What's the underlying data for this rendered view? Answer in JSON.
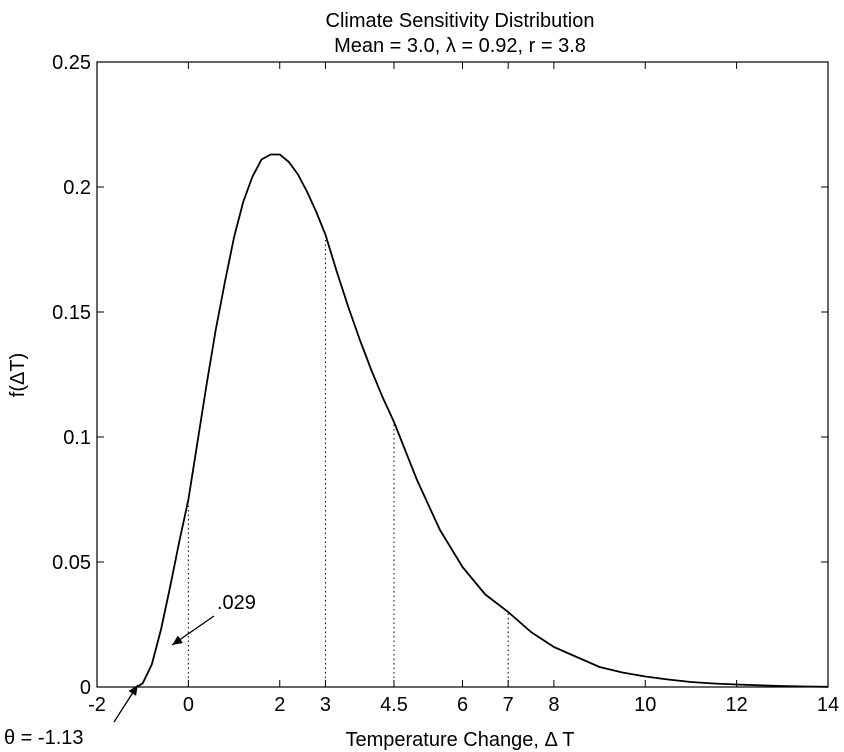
{
  "chart_data": {
    "type": "line",
    "title": "Climate Sensitivity Distribution",
    "subtitle": "Mean = 3.0, λ = 0.92, r = 3.8",
    "xlabel": "Temperature Change, Δ T",
    "ylabel": "f(ΔT)",
    "xlim": [
      -2,
      14
    ],
    "ylim": [
      0,
      0.25
    ],
    "x_ticks": [
      -2,
      0,
      2,
      3,
      4.5,
      6,
      7,
      8,
      10,
      12,
      14
    ],
    "x_tick_labels": [
      "-2",
      "0",
      "2",
      "3",
      "4.5",
      "6",
      "7",
      "8",
      "10",
      "12",
      "14"
    ],
    "y_ticks": [
      0,
      0.05,
      0.1,
      0.15,
      0.2,
      0.25
    ],
    "y_tick_labels": [
      "0",
      "0.05",
      "0.1",
      "0.15",
      "0.2",
      "0.25"
    ],
    "grid": false,
    "series": [
      {
        "x": [
          -1.13,
          -1.0,
          -0.8,
          -0.6,
          -0.4,
          -0.2,
          0.0,
          0.2,
          0.4,
          0.6,
          0.8,
          1.0,
          1.2,
          1.4,
          1.6,
          1.8,
          2.0,
          2.2,
          2.4,
          2.6,
          2.8,
          3.0,
          3.25,
          3.5,
          3.75,
          4.0,
          4.25,
          4.5,
          5.0,
          5.5,
          6.0,
          6.5,
          7.0,
          7.5,
          8.0,
          8.5,
          9.0,
          9.5,
          10.0,
          10.5,
          11.0,
          11.5,
          12.0,
          12.5,
          13.0,
          13.5,
          14.0
        ],
        "y": [
          0.0,
          0.0015,
          0.009,
          0.023,
          0.04,
          0.058,
          0.075,
          0.098,
          0.121,
          0.143,
          0.162,
          0.18,
          0.194,
          0.204,
          0.211,
          0.213,
          0.213,
          0.21,
          0.205,
          0.198,
          0.19,
          0.181,
          0.166,
          0.152,
          0.139,
          0.127,
          0.116,
          0.106,
          0.083,
          0.063,
          0.048,
          0.037,
          0.03,
          0.022,
          0.016,
          0.012,
          0.008,
          0.0058,
          0.0042,
          0.003,
          0.002,
          0.0014,
          0.001,
          0.0007,
          0.0004,
          0.0002,
          0.0001
        ]
      }
    ],
    "reference_lines_x": [
      0,
      3,
      4.5,
      7
    ],
    "annotations": [
      {
        "text": ".029",
        "x": -0.4,
        "y": 0.016
      },
      {
        "text": "θ = -1.13",
        "x": -1.13,
        "y": 0.0
      }
    ]
  }
}
